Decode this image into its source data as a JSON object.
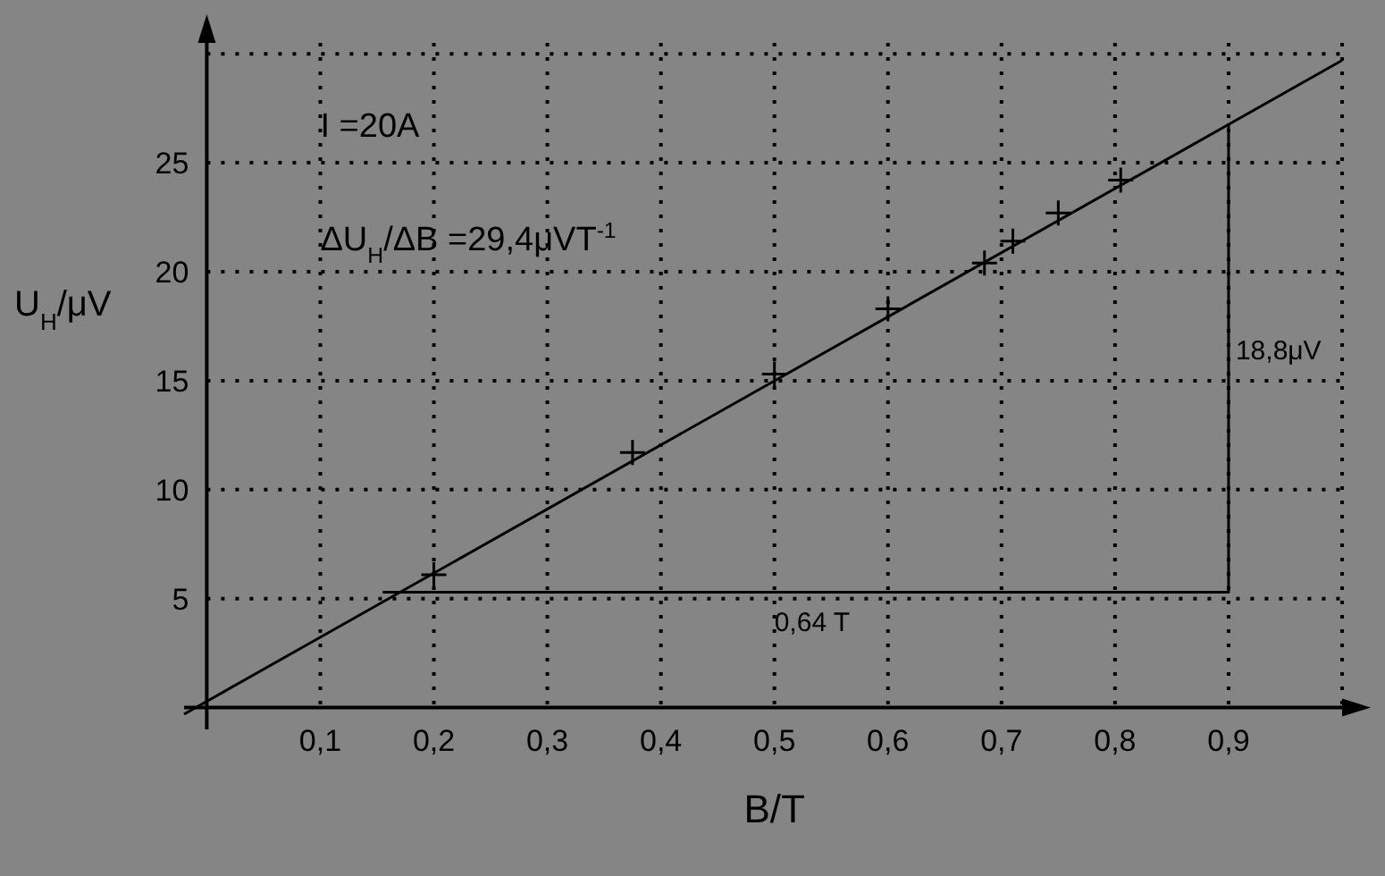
{
  "chart_data": {
    "type": "scatter",
    "xlabel": "B/T",
    "ylabel": "U$_{H}$/μV",
    "xlim": [
      -0.02,
      1.0
    ],
    "ylim": [
      -1,
      30.5
    ],
    "xticks": [
      {
        "value": 0.1,
        "label": "0,1"
      },
      {
        "value": 0.2,
        "label": "0,2"
      },
      {
        "value": 0.3,
        "label": "0,3"
      },
      {
        "value": 0.4,
        "label": "0,4"
      },
      {
        "value": 0.5,
        "label": "0,5"
      },
      {
        "value": 0.6,
        "label": "0,6"
      },
      {
        "value": 0.7,
        "label": "0,7"
      },
      {
        "value": 0.8,
        "label": "0,8"
      },
      {
        "value": 0.9,
        "label": "0,9"
      },
      {
        "value": 1.0,
        "label": null
      }
    ],
    "yticks": [
      5,
      10,
      15,
      20,
      25,
      {
        "value": 30,
        "label": null
      }
    ],
    "grid": true,
    "series": [
      {
        "color": "#000000",
        "marker": "cross",
        "x": [
          0.2,
          0.375,
          0.5,
          0.6,
          0.685,
          0.71,
          0.75,
          0.805
        ],
        "values": [
          6.1,
          11.7,
          15.3,
          18.3,
          20.4,
          21.4,
          22.7,
          24.2
        ]
      },
      {
        "type": "line",
        "color": "#000000",
        "x": [
          -0.02,
          1.0
        ],
        "values": [
          -0.3,
          29.7
        ]
      },
      {
        "type": "line",
        "color": "#000000",
        "x": [
          0.155,
          0.9,
          0.9
        ],
        "values": [
          5.3,
          5.3,
          26.8
        ]
      }
    ],
    "annotations": [
      "I =20A",
      "ΔU$_{H}$/ΔB =29,4μVT$^{-1}$",
      {
        "text": "0,64 T",
        "x": 0.5,
        "y": 5.3
      },
      {
        "text": "18,8μV",
        "x": 0.9,
        "y": 16
      }
    ]
  }
}
